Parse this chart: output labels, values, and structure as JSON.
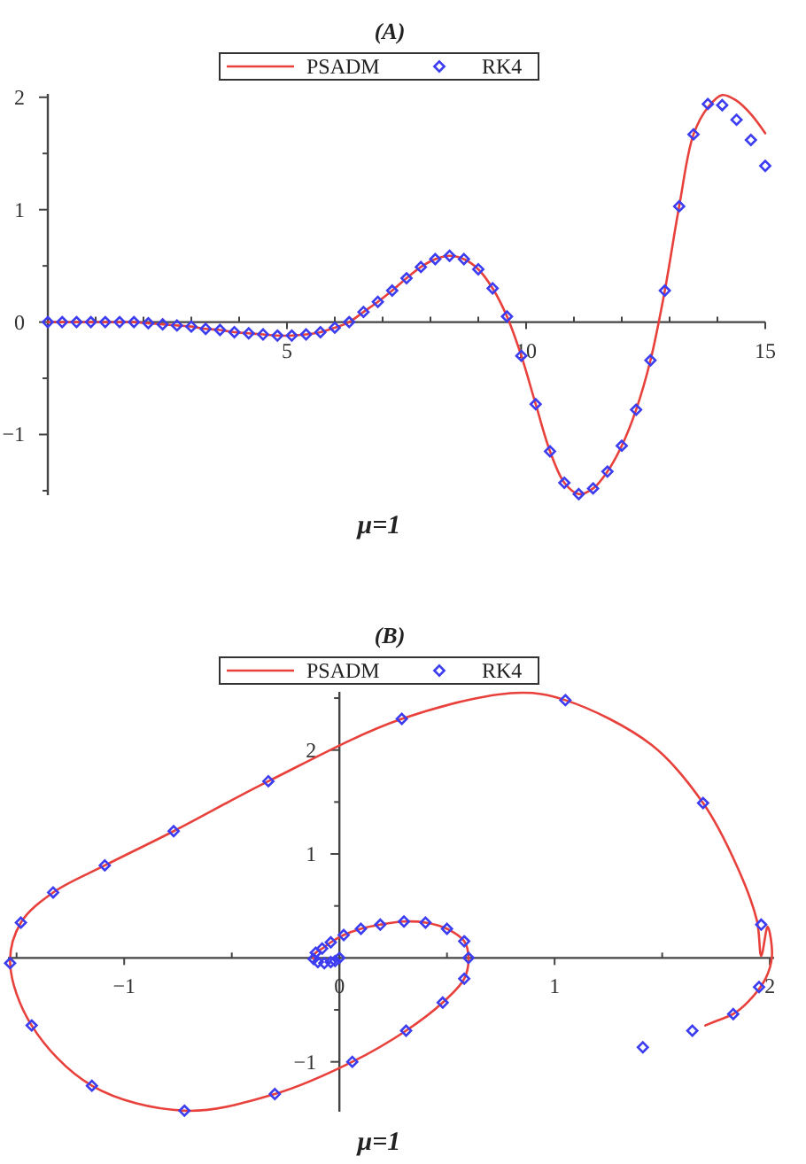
{
  "chart_data": [
    {
      "type": "line",
      "title": "(A)",
      "xlabel": "μ=1",
      "legend": "top",
      "xlim": [
        0,
        15
      ],
      "ylim": [
        -1.54,
        2.03
      ],
      "xticks": [
        {
          "value": 1,
          "label": null
        },
        {
          "value": 2,
          "label": null
        },
        {
          "value": 3,
          "label": null
        },
        {
          "value": 4,
          "label": null
        },
        5,
        {
          "value": 6,
          "label": null
        },
        {
          "value": 7,
          "label": null
        },
        {
          "value": 8,
          "label": null
        },
        {
          "value": 9,
          "label": null
        },
        10,
        {
          "value": 11,
          "label": null
        },
        {
          "value": 12,
          "label": null
        },
        {
          "value": 13,
          "label": null
        },
        {
          "value": 14,
          "label": null
        },
        15
      ],
      "yticks": [
        {
          "value": -1.5,
          "label": null
        },
        {
          "value": -1,
          "label": "−1"
        },
        {
          "value": -0.5,
          "label": null
        },
        0,
        {
          "value": 0.5,
          "label": null
        },
        1,
        {
          "value": 1.5,
          "label": null
        },
        2
      ],
      "x": [
        0,
        0.3,
        0.6,
        0.9,
        1.2,
        1.5,
        1.8,
        2.1,
        2.4,
        2.7,
        3,
        3.3,
        3.6,
        3.9,
        4.2,
        4.5,
        4.8,
        5.1,
        5.4,
        5.7,
        6,
        6.3,
        6.6,
        6.9,
        7.2,
        7.5,
        7.8,
        8.1,
        8.4,
        8.7,
        9,
        9.3,
        9.6,
        9.9,
        10.2,
        10.5,
        10.8,
        11.1,
        11.4,
        11.7,
        12,
        12.3,
        12.6,
        12.9,
        13.2,
        13.5,
        13.8,
        14.1,
        14.4,
        14.7,
        15
      ],
      "series": [
        {
          "name": "PSADM",
          "color": "#e8413c",
          "values": [
            0,
            0,
            0,
            0,
            0,
            0,
            0,
            -0.01,
            -0.02,
            -0.03,
            -0.04,
            -0.06,
            -0.07,
            -0.09,
            -0.1,
            -0.11,
            -0.12,
            -0.12,
            -0.11,
            -0.09,
            -0.05,
            0,
            0.09,
            0.18,
            0.28,
            0.39,
            0.49,
            0.56,
            0.59,
            0.56,
            0.47,
            0.3,
            0.05,
            -0.3,
            -0.73,
            -1.15,
            -1.43,
            -1.53,
            -1.48,
            -1.33,
            -1.1,
            -0.78,
            -0.34,
            0.28,
            1.03,
            1.67,
            1.91,
            2.02,
            1.97,
            1.85,
            1.68
          ]
        },
        {
          "name": "RK4",
          "type": "scatter",
          "color": "#3c3cf0",
          "marker": "diamond",
          "values": [
            0,
            0,
            0,
            0,
            0,
            0,
            0,
            -0.01,
            -0.02,
            -0.03,
            -0.04,
            -0.06,
            -0.07,
            -0.09,
            -0.1,
            -0.11,
            -0.12,
            -0.12,
            -0.11,
            -0.09,
            -0.05,
            0,
            0.09,
            0.18,
            0.28,
            0.39,
            0.49,
            0.56,
            0.59,
            0.56,
            0.47,
            0.3,
            0.05,
            -0.3,
            -0.73,
            -1.15,
            -1.43,
            -1.53,
            -1.48,
            -1.33,
            -1.1,
            -0.78,
            -0.34,
            0.28,
            1.03,
            1.67,
            1.94,
            1.93,
            1.8,
            1.62,
            1.39
          ]
        }
      ]
    },
    {
      "type": "line",
      "title": "(B)",
      "xlabel": "μ=1",
      "legend": "top",
      "xlim": [
        -1.54,
        2.02
      ],
      "ylim": [
        -1.48,
        2.56
      ],
      "xticks": [
        {
          "value": -1.5,
          "label": null
        },
        {
          "value": -1,
          "label": "−1"
        },
        {
          "value": -0.5,
          "label": null
        },
        0,
        {
          "value": 0.5,
          "label": null
        },
        1,
        {
          "value": 1.5,
          "label": null
        },
        2
      ],
      "yticks": [
        {
          "value": -1,
          "label": "−1"
        },
        {
          "value": -0.5,
          "label": null
        },
        {
          "value": 0.5,
          "label": null
        },
        1,
        {
          "value": 1.5,
          "label": null
        },
        2,
        {
          "value": 2.5,
          "label": null
        }
      ],
      "series": [
        {
          "name": "PSADM",
          "color": "#e8413c",
          "x": [
            -0.12,
            -0.12,
            -0.11,
            -0.08,
            -0.04,
            0.02,
            0.1,
            0.19,
            0.3,
            0.4,
            0.5,
            0.58,
            0.6,
            0.58,
            0.48,
            0.31,
            0.06,
            -0.3,
            -0.72,
            -1.15,
            -1.43,
            -1.53,
            -1.48,
            -1.33,
            -1.09,
            -0.77,
            -0.33,
            0.29,
            0.82,
            1.05,
            1.45,
            1.69,
            1.85,
            1.94,
            1.96,
            1.99,
            2.01,
            1.98,
            1.9,
            1.83,
            1.76,
            1.7
          ],
          "values": [
            -0.01,
            0.02,
            0.05,
            0.09,
            0.15,
            0.22,
            0.28,
            0.32,
            0.35,
            0.34,
            0.28,
            0.16,
            0,
            -0.2,
            -0.43,
            -0.7,
            -1,
            -1.31,
            -1.47,
            -1.23,
            -0.65,
            -0.05,
            0.34,
            0.63,
            0.89,
            1.22,
            1.7,
            2.3,
            2.55,
            2.48,
            2.05,
            1.49,
            0.87,
            0.36,
            0.02,
            0.3,
            0.02,
            -0.2,
            -0.42,
            -0.54,
            -0.6,
            -0.65
          ]
        },
        {
          "name": "RK4",
          "type": "scatter",
          "color": "#3c3cf0",
          "marker": "diamond",
          "x": [
            0,
            -0.02,
            -0.04,
            -0.07,
            -0.1,
            -0.12,
            -0.11,
            -0.08,
            -0.04,
            0.02,
            0.1,
            0.19,
            0.3,
            0.4,
            0.5,
            0.58,
            0.6,
            0.58,
            0.48,
            0.31,
            0.06,
            -0.3,
            -0.72,
            -1.15,
            -1.43,
            -1.53,
            -1.48,
            -1.33,
            -1.09,
            -0.77,
            -0.33,
            0.29,
            1.05,
            1.69,
            1.96,
            1.95,
            1.83,
            1.64,
            1.41
          ],
          "values": [
            0,
            -0.03,
            -0.04,
            -0.05,
            -0.04,
            -0.01,
            0.05,
            0.09,
            0.15,
            0.22,
            0.28,
            0.32,
            0.35,
            0.34,
            0.28,
            0.16,
            0,
            -0.2,
            -0.43,
            -0.7,
            -1,
            -1.31,
            -1.47,
            -1.23,
            -0.65,
            -0.05,
            0.34,
            0.63,
            0.89,
            1.22,
            1.7,
            2.3,
            2.48,
            1.49,
            0.32,
            -0.28,
            -0.54,
            -0.7,
            -0.86
          ]
        }
      ]
    }
  ]
}
